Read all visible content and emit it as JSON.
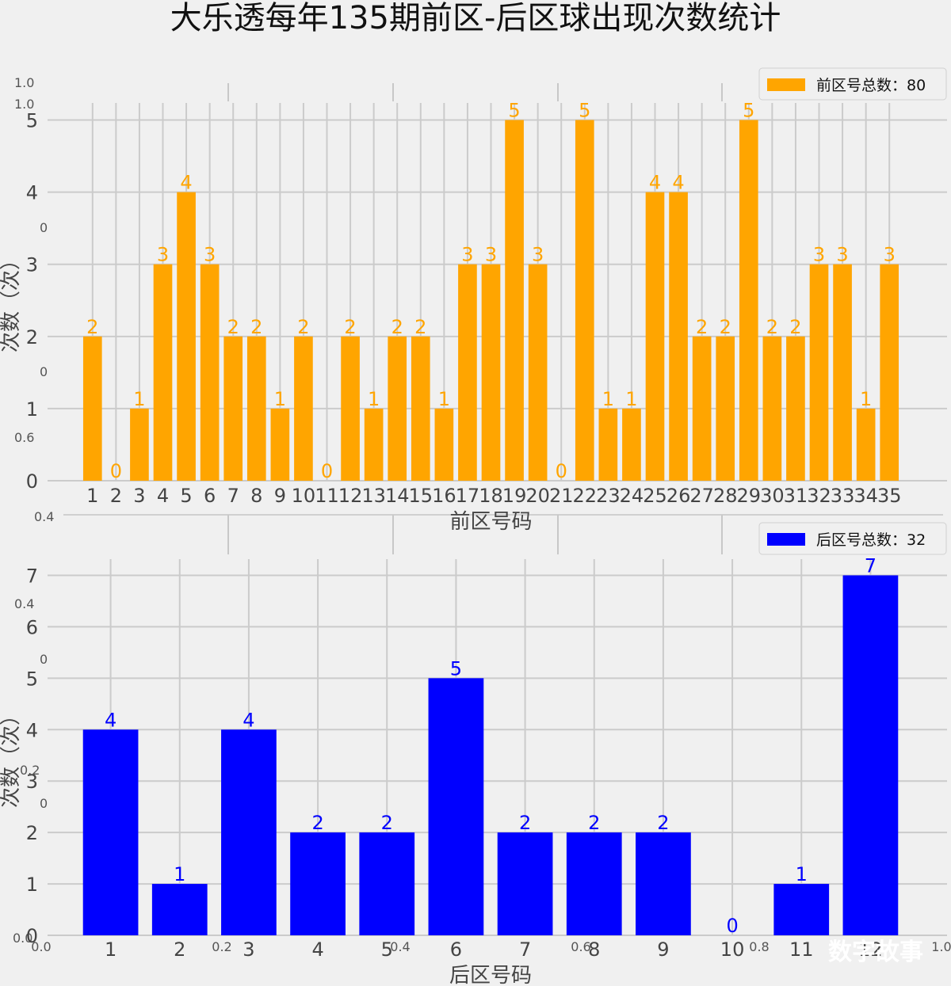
{
  "title": "大乐透每年135期前区-后区球出现次数统计",
  "watermark": "数字故事",
  "background_axis": {
    "y_ticks": [
      {
        "label": "1.0"
      },
      {
        "label": "1.0"
      },
      {
        "label": "0"
      },
      {
        "label": "0"
      },
      {
        "label": "0.6"
      },
      {
        "label": "0.4"
      },
      {
        "label": "0.4"
      },
      {
        "label": "0"
      },
      {
        "label": "0.2"
      },
      {
        "label": "0"
      },
      {
        "label": "0.0"
      }
    ],
    "x_ticks": [
      {
        "label": "0.0"
      },
      {
        "label": "0.2"
      },
      {
        "label": "0.4"
      },
      {
        "label": "0.6"
      },
      {
        "label": "0.8"
      },
      {
        "label": "1.0"
      }
    ]
  },
  "chart_data": [
    {
      "type": "bar",
      "color": "#ffa500",
      "xlabel": "前区号码",
      "ylabel": "次数（次）",
      "ylim": [
        0,
        5.5
      ],
      "yticks": [
        0,
        1,
        2,
        3,
        4,
        5
      ],
      "legend": "前区号总数：80",
      "legend_position": "top-right",
      "grid": true,
      "categories": [
        "1",
        "2",
        "3",
        "4",
        "5",
        "6",
        "7",
        "8",
        "9",
        "10",
        "11",
        "12",
        "13",
        "14",
        "15",
        "16",
        "17",
        "18",
        "19",
        "20",
        "21",
        "22",
        "23",
        "24",
        "25",
        "26",
        "27",
        "28",
        "29",
        "30",
        "31",
        "32",
        "33",
        "34",
        "35"
      ],
      "values": [
        2,
        0,
        1,
        3,
        4,
        3,
        2,
        2,
        1,
        2,
        0,
        2,
        1,
        2,
        2,
        1,
        3,
        3,
        5,
        3,
        0,
        5,
        1,
        1,
        4,
        4,
        2,
        2,
        5,
        2,
        2,
        3,
        3,
        1,
        3
      ]
    },
    {
      "type": "bar",
      "color": "#0000ff",
      "xlabel": "后区号码",
      "ylabel": "次数（次）",
      "ylim": [
        0,
        7.5
      ],
      "yticks": [
        0,
        1,
        2,
        3,
        4,
        5,
        6,
        7
      ],
      "legend": "后区号总数：32",
      "legend_position": "top-right",
      "grid": true,
      "categories": [
        "1",
        "2",
        "3",
        "4",
        "5",
        "6",
        "7",
        "8",
        "9",
        "10",
        "11",
        "12"
      ],
      "values": [
        4,
        1,
        4,
        2,
        2,
        5,
        2,
        2,
        2,
        0,
        1,
        7
      ]
    }
  ]
}
